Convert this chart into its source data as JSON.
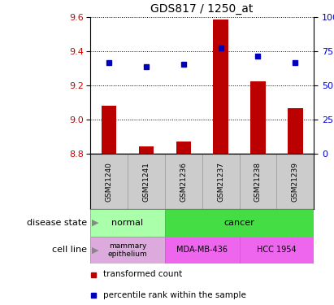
{
  "title": "GDS817 / 1250_at",
  "samples": [
    "GSM21240",
    "GSM21241",
    "GSM21236",
    "GSM21237",
    "GSM21238",
    "GSM21239"
  ],
  "bar_values": [
    9.08,
    8.845,
    8.875,
    9.585,
    9.225,
    9.068
  ],
  "bar_bottom": 8.8,
  "blue_values": [
    9.335,
    9.31,
    9.325,
    9.42,
    9.37,
    9.335
  ],
  "ylim": [
    8.8,
    9.6
  ],
  "yticks_left": [
    8.8,
    9.0,
    9.2,
    9.4,
    9.6
  ],
  "yticks_right_pct": [
    0,
    25,
    50,
    75,
    100
  ],
  "ymin": 8.8,
  "ymax": 9.6,
  "bar_color": "#BB0000",
  "blue_color": "#0000BB",
  "disease_normal_color": "#AAFFAA",
  "disease_cancer_color": "#44DD44",
  "cell_mammary_color": "#DDAADD",
  "cell_mda_color": "#EE66EE",
  "cell_hcc_color": "#EE66EE",
  "left_tick_color": "#CC0000",
  "right_tick_color": "#0000CC",
  "legend_items": [
    {
      "label": "transformed count",
      "color": "#BB0000"
    },
    {
      "label": "percentile rank within the sample",
      "color": "#0000BB"
    }
  ]
}
